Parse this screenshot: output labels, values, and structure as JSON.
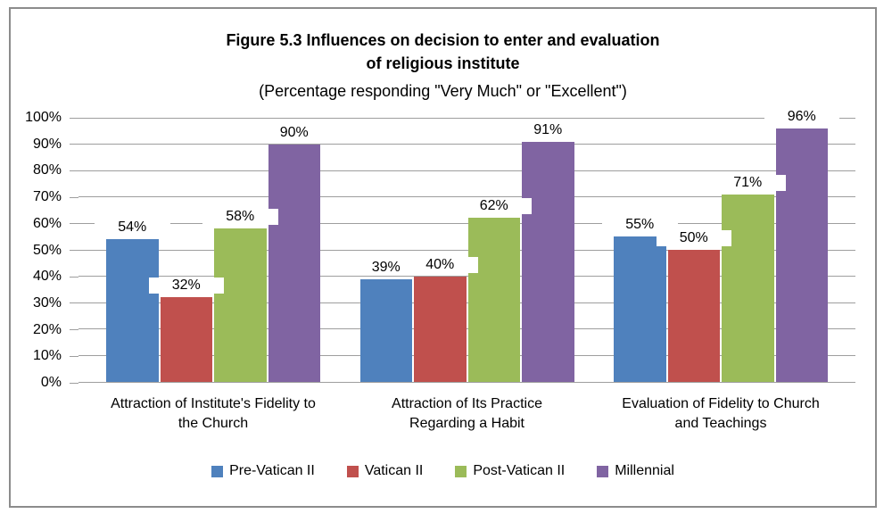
{
  "chart_data": {
    "type": "bar",
    "title_lines": [
      "Figure 5.3 Influences on decision to enter and evaluation",
      "of religious institute"
    ],
    "title": "Figure 5.3 Influences on decision to enter and evaluation of religious institute",
    "subtitle": "(Percentage responding \"Very Much\" or \"Excellent\")",
    "categories": [
      "Attraction of Institute's Fidelity to the Church",
      "Attraction of Its Practice Regarding a Habit",
      "Evaluation of Fidelity to Church and Teachings"
    ],
    "category_label_lines": [
      [
        "Attraction of Institute's Fidelity to",
        "the Church"
      ],
      [
        "Attraction of Its Practice",
        "Regarding a Habit"
      ],
      [
        "Evaluation of Fidelity to Church",
        "and Teachings"
      ]
    ],
    "series": [
      {
        "name": "Pre-Vatican II",
        "color": "#4F81BD",
        "values": [
          54,
          39,
          55
        ]
      },
      {
        "name": "Vatican II",
        "color": "#C0504D",
        "values": [
          32,
          40,
          50
        ]
      },
      {
        "name": "Post-Vatican II",
        "color": "#9BBB59",
        "values": [
          58,
          62,
          71
        ]
      },
      {
        "name": "Millennial",
        "color": "#8064A2",
        "values": [
          90,
          91,
          96
        ]
      }
    ],
    "data_labels": [
      [
        "54%",
        "39%",
        "55%"
      ],
      [
        "32%",
        "40%",
        "50%"
      ],
      [
        "58%",
        "62%",
        "71%"
      ],
      [
        "90%",
        "91%",
        "96%"
      ]
    ],
    "y_ticks": [
      "0%",
      "10%",
      "20%",
      "30%",
      "40%",
      "50%",
      "60%",
      "70%",
      "80%",
      "90%",
      "100%"
    ],
    "ylim": [
      0,
      100
    ],
    "grid": true,
    "legend_position": "bottom",
    "colors": {
      "gridline": "#9e9e9e",
      "frame_border": "#8c8c8c",
      "text": "#000000",
      "background": "#ffffff"
    }
  }
}
